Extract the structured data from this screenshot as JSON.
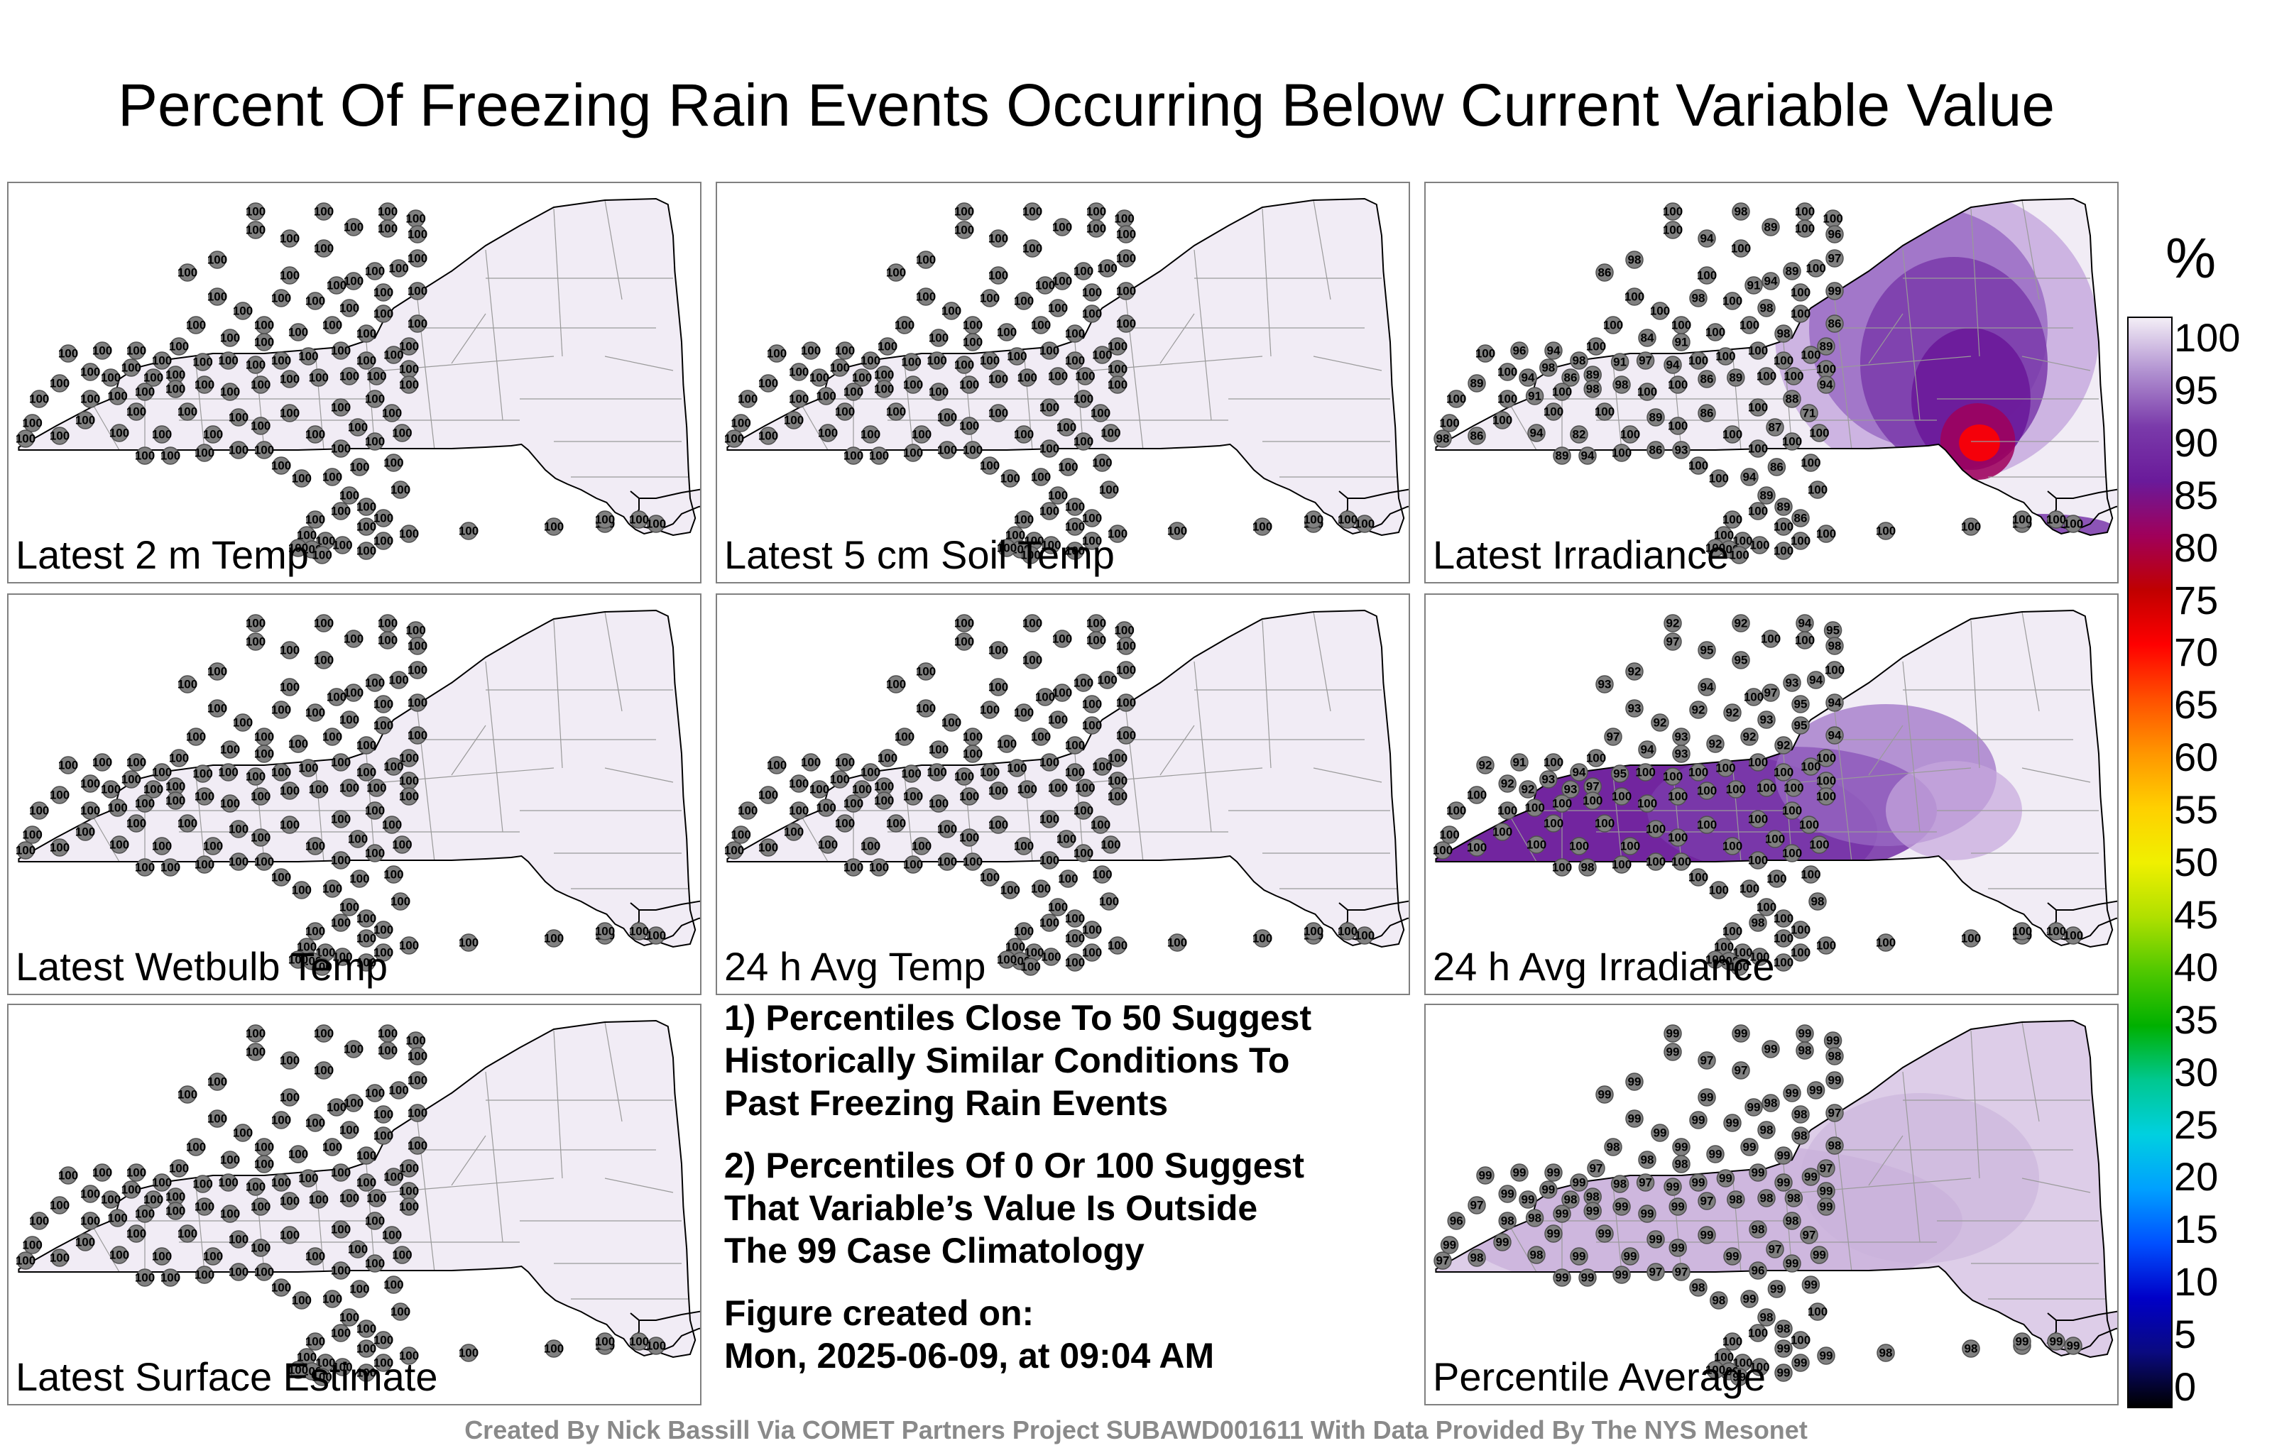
{
  "title": "Percent Of Freezing Rain Events Occurring Below Current Variable Value",
  "colorbar": {
    "unit": "%",
    "ticks": [
      "100",
      "95",
      "90",
      "85",
      "80",
      "75",
      "70",
      "65",
      "60",
      "55",
      "50",
      "45",
      "40",
      "35",
      "30",
      "25",
      "20",
      "15",
      "10",
      "5",
      "0"
    ],
    "stops": [
      "#000000",
      "#0a0a80",
      "#0000c8",
      "#0050ff",
      "#00a0ff",
      "#00d0e0",
      "#00c890",
      "#00b000",
      "#50c800",
      "#b0e000",
      "#f0f000",
      "#ffd000",
      "#ff9600",
      "#ff5000",
      "#ff0000",
      "#c00000",
      "#a0005a",
      "#6a1a9a",
      "#7a3aaa",
      "#b090d0",
      "#f3eef6"
    ]
  },
  "panels": [
    {
      "id": "t2m",
      "label": "Latest 2 m Temp",
      "theme": "plain",
      "values": [
        "100",
        "100",
        "100",
        "100",
        "100",
        "100",
        "100",
        "100",
        "100",
        "100",
        "100",
        "100",
        "100",
        "100",
        "100",
        "100",
        "100",
        "100",
        "100",
        "100",
        "100",
        "100",
        "100",
        "100",
        "100",
        "100",
        "100",
        "100",
        "100",
        "100",
        "100",
        "100",
        "100",
        "100",
        "100",
        "100",
        "100",
        "100",
        "100",
        "100",
        "100",
        "100",
        "100",
        "100",
        "100",
        "100",
        "100",
        "100",
        "100",
        "100",
        "100",
        "100",
        "100",
        "100",
        "100",
        "100",
        "100",
        "100",
        "100",
        "100",
        "100",
        "100",
        "100",
        "100",
        "100",
        "100",
        "100",
        "100",
        "100",
        "100",
        "100",
        "100",
        "100",
        "100",
        "100",
        "100",
        "100",
        "100",
        "100",
        "100",
        "100",
        "100",
        "100",
        "100",
        "100",
        "100",
        "100",
        "100",
        "100",
        "100",
        "100",
        "100",
        "100",
        "100",
        "100",
        "100",
        "100",
        "100",
        "100",
        "100",
        "100",
        "100",
        "100",
        "100",
        "100",
        "100",
        "100",
        "100",
        "100",
        "100",
        "100",
        "100",
        "100",
        "100",
        "100",
        "100",
        "100",
        "100",
        "100",
        "100"
      ]
    },
    {
      "id": "soil",
      "label": "Latest 5 cm Soil Temp",
      "theme": "plain",
      "values": [
        "100",
        "100",
        "100",
        "100",
        "100",
        "100",
        "100",
        "100",
        "100",
        "100",
        "100",
        "100",
        "100",
        "100",
        "100",
        "100",
        "100",
        "100",
        "100",
        "100",
        "100",
        "100",
        "100",
        "100",
        "100",
        "100",
        "100",
        "100",
        "100",
        "100",
        "100",
        "100",
        "100",
        "100",
        "100",
        "100",
        "100",
        "100",
        "100",
        "100",
        "100",
        "100",
        "100",
        "100",
        "100",
        "100",
        "100",
        "100",
        "100",
        "100",
        "100",
        "100",
        "100",
        "100",
        "100",
        "100",
        "100",
        "100",
        "100",
        "100",
        "100",
        "100",
        "100",
        "100",
        "100",
        "100",
        "100",
        "100",
        "100",
        "100",
        "100",
        "100",
        "100",
        "100",
        "100",
        "100",
        "100",
        "100",
        "100",
        "100",
        "100",
        "100",
        "100",
        "100",
        "100",
        "100",
        "100",
        "100",
        "100",
        "100",
        "100",
        "100",
        "100",
        "100",
        "100",
        "100",
        "100",
        "100",
        "100",
        "100",
        "100",
        "100",
        "100",
        "100",
        "100",
        "100",
        "100",
        "100",
        "100",
        "100",
        "100",
        "100",
        "100",
        "100",
        "100",
        "100",
        "100",
        "100",
        "100",
        "100"
      ]
    },
    {
      "id": "irr",
      "label": "Latest Irradiance",
      "theme": "irr",
      "values": [
        "100",
        "98",
        "100",
        "100",
        "100",
        "89",
        "100",
        "96",
        "94",
        "100",
        "97",
        "98",
        "86",
        "89",
        "100",
        "100",
        "94",
        "100",
        "99",
        "91",
        "98",
        "100",
        "100",
        "100",
        "100",
        "98",
        "100",
        "86",
        "89",
        "100",
        "94",
        "98",
        "100",
        "100",
        "91",
        "84",
        "100",
        "100",
        "98",
        "94",
        "96",
        "100",
        "100",
        "94",
        "98",
        "86",
        "89",
        "91",
        "97",
        "94",
        "100",
        "100",
        "100",
        "100",
        "100",
        "100",
        "100",
        "89",
        "86",
        "100",
        "100",
        "98",
        "98",
        "100",
        "91",
        "100",
        "89",
        "100",
        "100",
        "100",
        "100",
        "100",
        "89",
        "86",
        "100",
        "88",
        "71",
        "87",
        "100",
        "100",
        "100",
        "82",
        "94",
        "86",
        "98",
        "100",
        "100",
        "100",
        "100",
        "86",
        "94",
        "100",
        "100",
        "93",
        "86",
        "100",
        "94",
        "89",
        "89",
        "89",
        "86",
        "100",
        "100",
        "100",
        "100",
        "100",
        "100",
        "100",
        "100",
        "100",
        "100",
        "100",
        "100",
        "100",
        "100",
        "100",
        "100",
        "100",
        "100",
        "100"
      ]
    },
    {
      "id": "wb",
      "label": "Latest Wetbulb Temp",
      "theme": "plain",
      "values": [
        "100",
        "100",
        "100",
        "100",
        "100",
        "100",
        "100",
        "100",
        "100",
        "100",
        "100",
        "100",
        "100",
        "100",
        "100",
        "100",
        "100",
        "100",
        "100",
        "100",
        "100",
        "100",
        "100",
        "100",
        "100",
        "100",
        "100",
        "100",
        "100",
        "100",
        "100",
        "100",
        "100",
        "100",
        "100",
        "100",
        "100",
        "100",
        "100",
        "100",
        "100",
        "100",
        "100",
        "100",
        "100",
        "100",
        "100",
        "100",
        "100",
        "100",
        "100",
        "100",
        "100",
        "100",
        "100",
        "100",
        "100",
        "100",
        "100",
        "100",
        "100",
        "100",
        "100",
        "100",
        "100",
        "100",
        "100",
        "100",
        "100",
        "100",
        "100",
        "100",
        "100",
        "100",
        "100",
        "100",
        "100",
        "100",
        "100",
        "100",
        "100",
        "100",
        "100",
        "100",
        "100",
        "100",
        "100",
        "100",
        "100",
        "100",
        "100",
        "100",
        "100",
        "100",
        "100",
        "100",
        "100",
        "100",
        "100",
        "100",
        "100",
        "100",
        "100",
        "100",
        "100",
        "100",
        "100",
        "100",
        "100",
        "100",
        "100",
        "100",
        "100",
        "100",
        "100",
        "100",
        "100",
        "100",
        "100",
        "100"
      ]
    },
    {
      "id": "avgt",
      "label": "24 h Avg Temp",
      "theme": "plain",
      "values": [
        "100",
        "100",
        "100",
        "100",
        "100",
        "100",
        "100",
        "100",
        "100",
        "100",
        "100",
        "100",
        "100",
        "100",
        "100",
        "100",
        "100",
        "100",
        "100",
        "100",
        "100",
        "100",
        "100",
        "100",
        "100",
        "100",
        "100",
        "100",
        "100",
        "100",
        "100",
        "100",
        "100",
        "100",
        "100",
        "100",
        "100",
        "100",
        "100",
        "100",
        "100",
        "100",
        "100",
        "100",
        "100",
        "100",
        "100",
        "100",
        "100",
        "100",
        "100",
        "100",
        "100",
        "100",
        "100",
        "100",
        "100",
        "100",
        "100",
        "100",
        "100",
        "100",
        "100",
        "100",
        "100",
        "100",
        "100",
        "100",
        "100",
        "100",
        "100",
        "100",
        "100",
        "100",
        "100",
        "100",
        "100",
        "100",
        "100",
        "100",
        "100",
        "100",
        "100",
        "100",
        "100",
        "100",
        "100",
        "100",
        "100",
        "100",
        "100",
        "100",
        "100",
        "100",
        "100",
        "100",
        "100",
        "100",
        "100",
        "100",
        "100",
        "100",
        "100",
        "100",
        "100",
        "100",
        "100",
        "100",
        "100",
        "100",
        "100",
        "100",
        "100",
        "100",
        "100",
        "100",
        "100",
        "100",
        "100",
        "100"
      ]
    },
    {
      "id": "avgirr",
      "label": "24 h Avg Irradiance",
      "theme": "avgirr",
      "values": [
        "92",
        "92",
        "94",
        "95",
        "97",
        "100",
        "100",
        "98",
        "95",
        "95",
        "100",
        "92",
        "93",
        "93",
        "94",
        "94",
        "97",
        "95",
        "94",
        "100",
        "92",
        "92",
        "93",
        "92",
        "93",
        "93",
        "95",
        "94",
        "100",
        "100",
        "100",
        "92",
        "92",
        "92",
        "93",
        "94",
        "97",
        "100",
        "94",
        "100",
        "91",
        "92",
        "92",
        "92",
        "93",
        "93",
        "97",
        "95",
        "100",
        "100",
        "100",
        "100",
        "100",
        "100",
        "100",
        "100",
        "100",
        "100",
        "100",
        "100",
        "100",
        "100",
        "100",
        "100",
        "100",
        "100",
        "100",
        "100",
        "100",
        "100",
        "100",
        "100",
        "100",
        "100",
        "100",
        "100",
        "100",
        "100",
        "100",
        "100",
        "100",
        "100",
        "100",
        "100",
        "100",
        "100",
        "100",
        "100",
        "100",
        "100",
        "100",
        "100",
        "100",
        "100",
        "100",
        "100",
        "98",
        "100",
        "100",
        "100",
        "100",
        "98",
        "98",
        "100",
        "100",
        "100",
        "100",
        "100",
        "100",
        "100",
        "100",
        "100",
        "100",
        "100",
        "100",
        "100",
        "100",
        "100",
        "100",
        "100"
      ]
    },
    {
      "id": "surf",
      "label": "Latest Surface Estimate",
      "theme": "plain",
      "values": [
        "100",
        "100",
        "100",
        "100",
        "100",
        "100",
        "100",
        "100",
        "100",
        "100",
        "100",
        "100",
        "100",
        "100",
        "100",
        "100",
        "100",
        "100",
        "100",
        "100",
        "100",
        "100",
        "100",
        "100",
        "100",
        "100",
        "100",
        "100",
        "100",
        "100",
        "100",
        "100",
        "100",
        "100",
        "100",
        "100",
        "100",
        "100",
        "100",
        "100",
        "100",
        "100",
        "100",
        "100",
        "100",
        "100",
        "100",
        "100",
        "100",
        "100",
        "100",
        "100",
        "100",
        "100",
        "100",
        "100",
        "100",
        "100",
        "100",
        "100",
        "100",
        "100",
        "100",
        "100",
        "100",
        "100",
        "100",
        "100",
        "100",
        "100",
        "100",
        "100",
        "100",
        "100",
        "100",
        "100",
        "100",
        "100",
        "100",
        "100",
        "100",
        "100",
        "100",
        "100",
        "100",
        "100",
        "100",
        "100",
        "100",
        "100",
        "100",
        "100",
        "100",
        "100",
        "100",
        "100",
        "100",
        "100",
        "100",
        "100",
        "100",
        "100",
        "100",
        "100",
        "100",
        "100",
        "100",
        "100",
        "100",
        "100",
        "100",
        "100",
        "100",
        "100",
        "100",
        "100",
        "100",
        "100",
        "100",
        "100"
      ]
    },
    {
      "id": "avg",
      "label": "Percentile Average",
      "theme": "avg",
      "values": [
        "99",
        "99",
        "99",
        "99",
        "99",
        "99",
        "98",
        "98",
        "97",
        "97",
        "99",
        "99",
        "99",
        "99",
        "99",
        "99",
        "98",
        "98",
        "97",
        "99",
        "99",
        "99",
        "99",
        "99",
        "99",
        "98",
        "98",
        "98",
        "97",
        "99",
        "99",
        "99",
        "99",
        "99",
        "98",
        "98",
        "98",
        "97",
        "99",
        "99",
        "99",
        "99",
        "99",
        "99",
        "99",
        "98",
        "98",
        "98",
        "97",
        "99",
        "99",
        "99",
        "99",
        "99",
        "99",
        "98",
        "98",
        "98",
        "97",
        "99",
        "99",
        "99",
        "99",
        "99",
        "98",
        "98",
        "97",
        "96",
        "99",
        "99",
        "99",
        "99",
        "99",
        "99",
        "98",
        "98",
        "97",
        "97",
        "99",
        "99",
        "99",
        "99",
        "98",
        "98",
        "97",
        "96",
        "99",
        "99",
        "99",
        "99",
        "99",
        "98",
        "98",
        "97",
        "97",
        "99",
        "99",
        "99",
        "98",
        "98",
        "100",
        "100",
        "100",
        "100",
        "100",
        "100",
        "100",
        "100",
        "100",
        "99",
        "99",
        "99",
        "99",
        "99",
        "98",
        "98",
        "97",
        "99",
        "99",
        "99"
      ]
    }
  ],
  "notes": [
    [
      "1) Percentiles Close To 50 Suggest",
      "Historically Similar Conditions To",
      "Past Freezing Rain Events"
    ],
    [
      "2) Percentiles Of 0 Or 100 Suggest",
      "That Variable’s Value Is Outside",
      "The 99 Case Climatology"
    ],
    [
      "Figure created on:",
      "Mon, 2025-06-09, at 09:04 AM"
    ]
  ],
  "footer": "Created By Nick Bassill Via COMET Partners Project SUBAWD001611 With Data Provided By The NYS Mesonet"
}
